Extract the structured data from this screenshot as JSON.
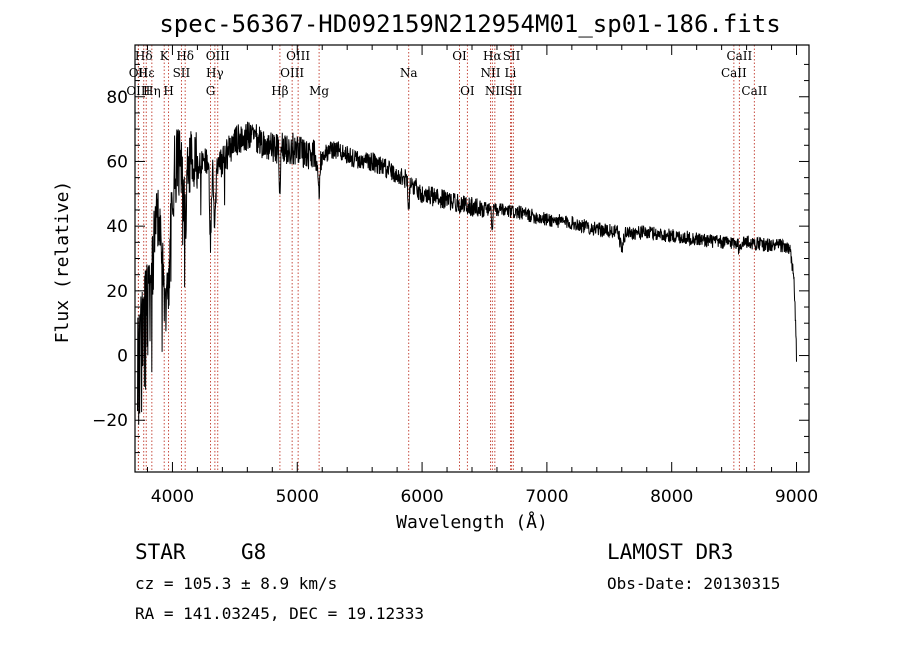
{
  "chart_data": {
    "type": "line",
    "title": "spec-56367-HD092159N212954M01_sp01-186.fits",
    "xlabel": "Wavelength (Å)",
    "ylabel": "Flux (relative)",
    "xlim": [
      3700,
      9100
    ],
    "ylim": [
      -36,
      96
    ],
    "xticks": [
      4000,
      5000,
      6000,
      7000,
      8000,
      9000
    ],
    "yticks": [
      -20,
      0,
      20,
      40,
      60,
      80
    ],
    "spectrum_anchors": {
      "x": [
        3700,
        3720,
        3760,
        3800,
        3850,
        3900,
        3950,
        4000,
        4050,
        4100,
        4200,
        4300,
        4400,
        4500,
        4600,
        4700,
        4800,
        4900,
        5000,
        5100,
        5200,
        5300,
        5400,
        5500,
        5600,
        5700,
        5800,
        5900,
        6000,
        6200,
        6400,
        6600,
        6800,
        7000,
        7200,
        7400,
        7600,
        7800,
        8000,
        8200,
        8400,
        8600,
        8800,
        8900,
        8950,
        8980,
        9000
      ],
      "y": [
        -8,
        0,
        12,
        22,
        36,
        44,
        52,
        56,
        60,
        62,
        58,
        62,
        60,
        66,
        68,
        66,
        64,
        64,
        64,
        62,
        62,
        64,
        62,
        60,
        60,
        58,
        56,
        54,
        50,
        48,
        46,
        45,
        44,
        42,
        41,
        39,
        38,
        38,
        37,
        36,
        35,
        35,
        34,
        34,
        32,
        24,
        0
      ]
    },
    "spectral_lines": [
      {
        "label": "Hδ",
        "wavelength": 3770,
        "row": 1
      },
      {
        "label": "OII",
        "wavelength": 3727,
        "row": 2
      },
      {
        "label": "OIII",
        "wavelength": 3727,
        "row": 3
      },
      {
        "label": "Hε",
        "wavelength": 3790,
        "row": 2
      },
      {
        "label": "Hη",
        "wavelength": 3835,
        "row": 3
      },
      {
        "label": "K",
        "wavelength": 3934,
        "row": 1
      },
      {
        "label": "H",
        "wavelength": 3969,
        "row": 3
      },
      {
        "label": "Hδ",
        "wavelength": 4102,
        "row": 1
      },
      {
        "label": "SII",
        "wavelength": 4072,
        "row": 2
      },
      {
        "label": "OIII",
        "wavelength": 4363,
        "row": 1
      },
      {
        "label": "Hγ",
        "wavelength": 4340,
        "row": 2
      },
      {
        "label": "G",
        "wavelength": 4305,
        "row": 3
      },
      {
        "label": "Hβ",
        "wavelength": 4861,
        "row": 3
      },
      {
        "label": "OIII",
        "wavelength": 5007,
        "row": 1
      },
      {
        "label": "OIII",
        "wavelength": 4959,
        "row": 2
      },
      {
        "label": "Mg",
        "wavelength": 5175,
        "row": 3
      },
      {
        "label": "Na",
        "wavelength": 5893,
        "row": 2
      },
      {
        "label": "OI",
        "wavelength": 6300,
        "row": 1
      },
      {
        "label": "OI",
        "wavelength": 6363,
        "row": 3
      },
      {
        "label": "Hα",
        "wavelength": 6563,
        "row": 1
      },
      {
        "label": "SII",
        "wavelength": 6717,
        "row": 1
      },
      {
        "label": "NII",
        "wavelength": 6548,
        "row": 2
      },
      {
        "label": "Li",
        "wavelength": 6708,
        "row": 2
      },
      {
        "label": "NII",
        "wavelength": 6583,
        "row": 3
      },
      {
        "label": "SII",
        "wavelength": 6731,
        "row": 3
      },
      {
        "label": "CaII",
        "wavelength": 8542,
        "row": 1
      },
      {
        "label": "CaII",
        "wavelength": 8498,
        "row": 2
      },
      {
        "label": "CaII",
        "wavelength": 8662,
        "row": 3
      }
    ]
  },
  "footer": {
    "object_type": "STAR",
    "subclass": "G8",
    "survey": "LAMOST DR3",
    "redshift": "cz = 105.3 ± 8.9 km/s",
    "obs_date": "Obs-Date: 20130315",
    "coords": "RA = 141.03245, DEC =  19.12333"
  },
  "colors": {
    "line_marker": "#c0392b",
    "spectrum": "#000000"
  }
}
